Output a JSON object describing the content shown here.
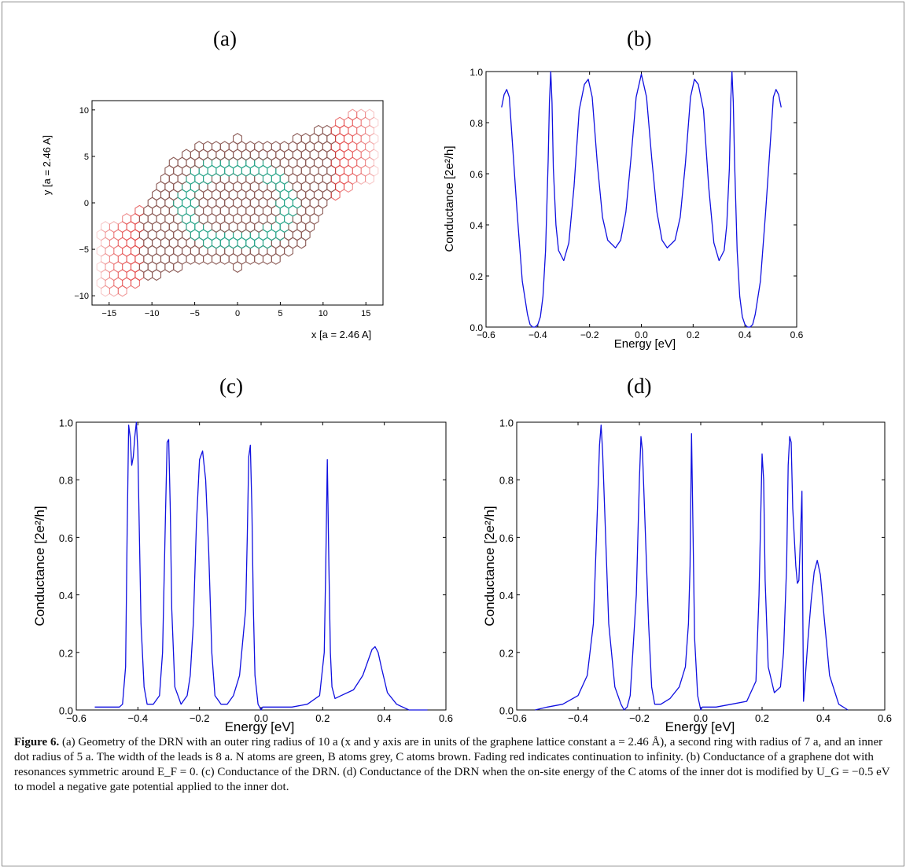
{
  "labels": {
    "a": "(a)",
    "b": "(b)",
    "c": "(c)",
    "d": "(d)"
  },
  "caption": {
    "figure_label": "Figure 6.",
    "text": "(a) Geometry of the DRN with an outer ring radius of 10 a (x and y axis are in units of the graphene lattice constant a = 2.46 Å), a second ring with radius of 7 a, and an inner dot radius of 5 a. The width of the leads is 8 a. N atoms are green, B atoms grey, C atoms brown. Fading red indicates continuation to infinity. (b) Conductance of a graphene dot with resonances symmetric around E_F = 0. (c) Conductance of the DRN. (d) Conductance of the DRN when the on-site energy of the C atoms of the inner dot is modified by U_G = −0.5 eV to model a negative gate potential applied to the inner dot."
  },
  "colors": {
    "line": "#1010e0",
    "c_atoms": "#8b5a55",
    "n_atoms": "#2aa58a",
    "lead": "#e03030"
  },
  "chart_data": [
    {
      "id": "a",
      "type": "scatter",
      "xlabel": "x [a = 2.46 A]",
      "ylabel": "y [a = 2.46 A]",
      "xlim": [
        -17,
        17
      ],
      "ylim": [
        -11,
        11
      ],
      "xticks": [
        "−15",
        "−10",
        "−5",
        "0",
        "5",
        "10",
        "15"
      ],
      "yticks": [
        "10",
        "5",
        "0",
        "−5",
        "−10"
      ]
    },
    {
      "id": "b",
      "type": "line",
      "xlabel": "Energy [eV]",
      "ylabel": "Conductance [2e²/h]",
      "xlim": [
        -0.6,
        0.6
      ],
      "ylim": [
        0,
        1
      ],
      "xticks": [
        "−0.6",
        "−0.4",
        "−0.2",
        "0.0",
        "0.2",
        "0.4",
        "0.6"
      ],
      "yticks": [
        "0.0",
        "0.2",
        "0.4",
        "0.6",
        "0.8",
        "1.0"
      ],
      "x": [
        -0.54,
        -0.53,
        -0.52,
        -0.51,
        -0.5,
        -0.48,
        -0.46,
        -0.44,
        -0.43,
        -0.42,
        -0.41,
        -0.4,
        -0.39,
        -0.38,
        -0.37,
        -0.36,
        -0.355,
        -0.35,
        -0.345,
        -0.34,
        -0.33,
        -0.32,
        -0.3,
        -0.28,
        -0.26,
        -0.24,
        -0.22,
        -0.205,
        -0.19,
        -0.17,
        -0.15,
        -0.13,
        -0.1,
        -0.08,
        -0.06,
        -0.04,
        -0.02,
        0.0,
        0.02,
        0.04,
        0.06,
        0.08,
        0.1,
        0.13,
        0.15,
        0.17,
        0.19,
        0.205,
        0.22,
        0.24,
        0.26,
        0.28,
        0.3,
        0.32,
        0.33,
        0.34,
        0.345,
        0.35,
        0.355,
        0.36,
        0.37,
        0.38,
        0.39,
        0.4,
        0.41,
        0.42,
        0.43,
        0.44,
        0.46,
        0.48,
        0.5,
        0.51,
        0.52,
        0.53,
        0.54
      ],
      "y": [
        0.86,
        0.91,
        0.93,
        0.9,
        0.75,
        0.45,
        0.18,
        0.05,
        0.01,
        0.0,
        0.0,
        0.01,
        0.04,
        0.12,
        0.3,
        0.65,
        0.88,
        1.0,
        0.88,
        0.62,
        0.4,
        0.3,
        0.26,
        0.33,
        0.55,
        0.85,
        0.95,
        0.97,
        0.9,
        0.64,
        0.43,
        0.34,
        0.31,
        0.34,
        0.45,
        0.66,
        0.9,
        0.99,
        0.9,
        0.66,
        0.45,
        0.34,
        0.31,
        0.34,
        0.43,
        0.64,
        0.9,
        0.97,
        0.95,
        0.85,
        0.55,
        0.33,
        0.26,
        0.3,
        0.4,
        0.62,
        0.88,
        1.0,
        0.88,
        0.65,
        0.3,
        0.12,
        0.04,
        0.01,
        0.0,
        0.0,
        0.01,
        0.05,
        0.18,
        0.45,
        0.75,
        0.9,
        0.93,
        0.91,
        0.86
      ]
    },
    {
      "id": "c",
      "type": "line",
      "xlabel": "Energy [eV]",
      "ylabel": "Conductance [2e²/h]",
      "xlim": [
        -0.6,
        0.6
      ],
      "ylim": [
        0,
        1
      ],
      "xticks": [
        "−0.6",
        "−0.4",
        "−0.2",
        "0.0",
        "0.2",
        "0.4",
        "0.6"
      ],
      "yticks": [
        "0.0",
        "0.2",
        "0.4",
        "0.6",
        "0.8",
        "1.0"
      ],
      "x": [
        -0.54,
        -0.5,
        -0.46,
        -0.45,
        -0.44,
        -0.435,
        -0.43,
        -0.425,
        -0.42,
        -0.415,
        -0.41,
        -0.405,
        -0.4,
        -0.395,
        -0.39,
        -0.38,
        -0.37,
        -0.35,
        -0.33,
        -0.32,
        -0.31,
        -0.305,
        -0.3,
        -0.295,
        -0.29,
        -0.28,
        -0.26,
        -0.24,
        -0.23,
        -0.22,
        -0.21,
        -0.2,
        -0.19,
        -0.18,
        -0.17,
        -0.16,
        -0.15,
        -0.13,
        -0.11,
        -0.09,
        -0.07,
        -0.05,
        -0.045,
        -0.04,
        -0.035,
        -0.03,
        -0.025,
        -0.02,
        -0.01,
        0.0,
        0.005,
        0.05,
        0.1,
        0.15,
        0.19,
        0.205,
        0.21,
        0.215,
        0.22,
        0.225,
        0.23,
        0.24,
        0.26,
        0.3,
        0.33,
        0.35,
        0.36,
        0.37,
        0.38,
        0.39,
        0.41,
        0.44,
        0.48,
        0.54
      ],
      "y": [
        0.01,
        0.01,
        0.01,
        0.02,
        0.15,
        0.6,
        0.99,
        0.95,
        0.85,
        0.88,
        0.95,
        1.0,
        0.9,
        0.6,
        0.3,
        0.08,
        0.02,
        0.02,
        0.05,
        0.2,
        0.7,
        0.93,
        0.94,
        0.7,
        0.35,
        0.08,
        0.02,
        0.05,
        0.12,
        0.3,
        0.65,
        0.87,
        0.9,
        0.8,
        0.55,
        0.2,
        0.05,
        0.02,
        0.02,
        0.05,
        0.12,
        0.35,
        0.6,
        0.88,
        0.92,
        0.7,
        0.35,
        0.12,
        0.02,
        0.0,
        0.01,
        0.01,
        0.01,
        0.02,
        0.05,
        0.2,
        0.5,
        0.87,
        0.5,
        0.2,
        0.08,
        0.04,
        0.05,
        0.07,
        0.12,
        0.18,
        0.21,
        0.22,
        0.2,
        0.15,
        0.06,
        0.02,
        0.0,
        0.0
      ]
    },
    {
      "id": "d",
      "type": "line",
      "xlabel": "Energy [eV]",
      "ylabel": "Conductance [2e²/h]",
      "xlim": [
        -0.6,
        0.6
      ],
      "ylim": [
        0,
        1
      ],
      "xticks": [
        "−0.6",
        "−0.4",
        "−0.2",
        "0.0",
        "0.2",
        "0.4",
        "0.6"
      ],
      "yticks": [
        "0.0",
        "0.2",
        "0.4",
        "0.6",
        "0.8",
        "1.0"
      ],
      "x": [
        -0.54,
        -0.5,
        -0.45,
        -0.4,
        -0.37,
        -0.35,
        -0.34,
        -0.33,
        -0.325,
        -0.32,
        -0.31,
        -0.3,
        -0.28,
        -0.26,
        -0.25,
        -0.24,
        -0.23,
        -0.21,
        -0.2,
        -0.195,
        -0.19,
        -0.18,
        -0.17,
        -0.16,
        -0.15,
        -0.13,
        -0.1,
        -0.07,
        -0.05,
        -0.04,
        -0.035,
        -0.03,
        -0.025,
        -0.02,
        -0.01,
        0.0,
        0.005,
        0.05,
        0.1,
        0.15,
        0.18,
        0.19,
        0.2,
        0.205,
        0.21,
        0.22,
        0.24,
        0.26,
        0.27,
        0.28,
        0.285,
        0.29,
        0.295,
        0.3,
        0.31,
        0.315,
        0.32,
        0.325,
        0.33,
        0.333,
        0.335,
        0.34,
        0.35,
        0.36,
        0.37,
        0.38,
        0.39,
        0.4,
        0.42,
        0.45,
        0.48
      ],
      "y": [
        0.0,
        0.01,
        0.02,
        0.05,
        0.12,
        0.3,
        0.6,
        0.92,
        0.99,
        0.9,
        0.6,
        0.3,
        0.08,
        0.02,
        0.0,
        0.01,
        0.05,
        0.4,
        0.8,
        0.95,
        0.9,
        0.6,
        0.3,
        0.08,
        0.02,
        0.02,
        0.04,
        0.08,
        0.15,
        0.3,
        0.5,
        0.96,
        0.6,
        0.25,
        0.05,
        0.0,
        0.01,
        0.01,
        0.02,
        0.03,
        0.1,
        0.4,
        0.89,
        0.8,
        0.45,
        0.15,
        0.06,
        0.08,
        0.2,
        0.5,
        0.85,
        0.95,
        0.93,
        0.7,
        0.5,
        0.44,
        0.45,
        0.6,
        0.76,
        0.3,
        0.03,
        0.1,
        0.25,
        0.38,
        0.48,
        0.52,
        0.47,
        0.35,
        0.12,
        0.02,
        0.0
      ]
    }
  ]
}
